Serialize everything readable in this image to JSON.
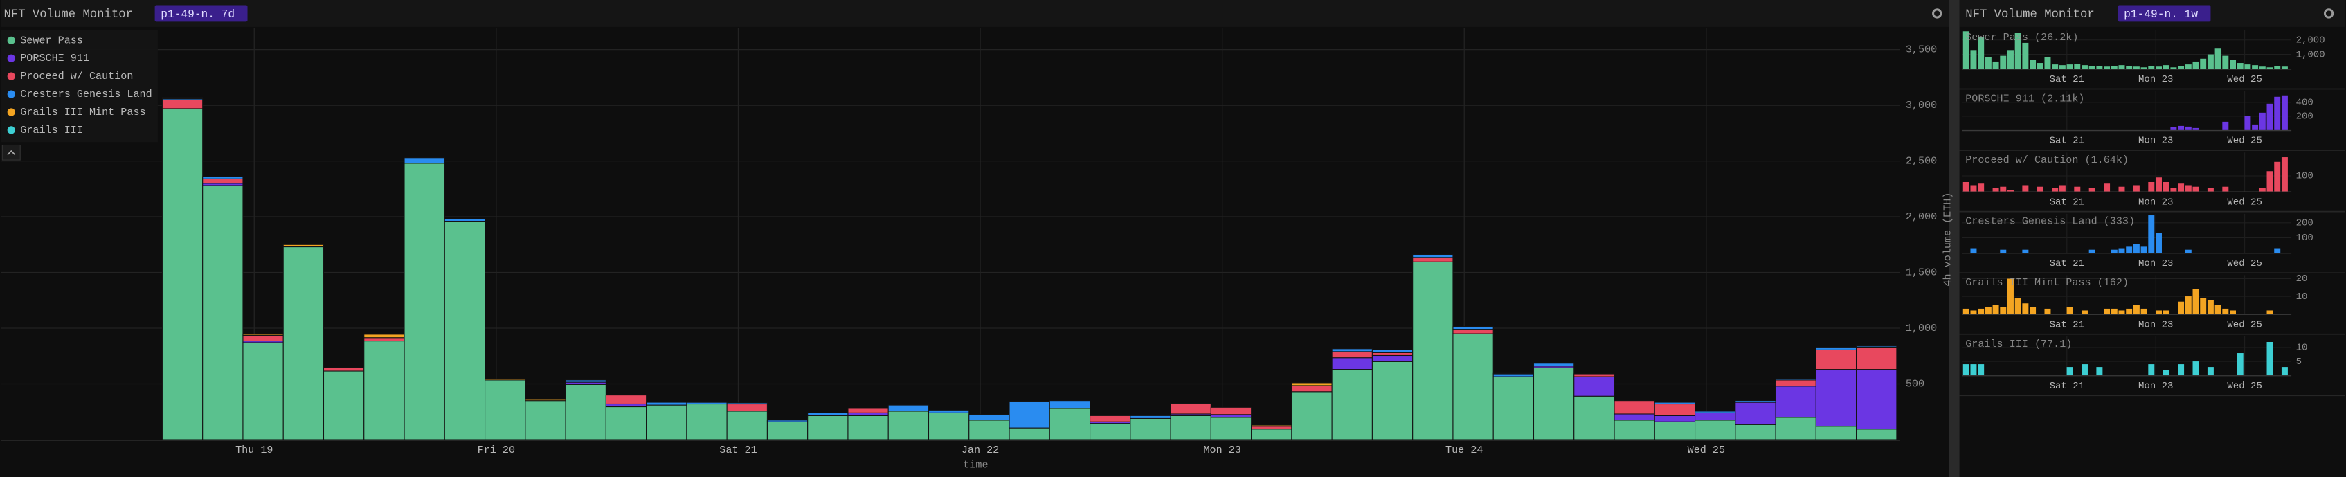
{
  "chart_data": [
    {
      "type": "stacked-bar",
      "title": "NFT Volume Monitor",
      "subtitle": "p1-49-n. 7d",
      "x_label": "time",
      "y_label": "4h volume (ETH)",
      "categories": [
        null,
        null,
        "Thu 19",
        null,
        null,
        null,
        null,
        null,
        "Fri 20",
        null,
        null,
        null,
        null,
        null,
        "Sat 21",
        null,
        null,
        null,
        null,
        null,
        "Jan 22",
        null,
        null,
        null,
        null,
        null,
        "Mon 23",
        null,
        null,
        null,
        null,
        null,
        "Tue 24",
        null,
        null,
        null,
        null,
        null,
        "Wed 25",
        null,
        null,
        null,
        null
      ],
      "ylim": [
        0,
        3690
      ],
      "yticks": [
        500,
        {
          "value": 1000,
          "label": "1,000"
        },
        {
          "value": 1500,
          "label": "1,500"
        },
        {
          "value": 2000,
          "label": "2,000"
        },
        {
          "value": 2500,
          "label": "2,500"
        },
        {
          "value": 3000,
          "label": "3,000"
        },
        {
          "value": 3500,
          "label": "3,500"
        }
      ],
      "grid": true,
      "legend": "upper left",
      "series": [
        {
          "name": "Sewer Pass",
          "color": "#5ac18e",
          "values": [
            2970,
            2280,
            870,
            1730,
            615,
            885,
            2480,
            1960,
            535,
            350,
            495,
            295,
            310,
            320,
            255,
            160,
            215,
            215,
            255,
            240,
            175,
            105,
            280,
            145,
            190,
            215,
            200,
            95,
            430,
            630,
            700,
            1595,
            950,
            565,
            645,
            390,
            175,
            160,
            175,
            135,
            200,
            120,
            95
          ]
        },
        {
          "name": "PORSCHΞ 911",
          "color": "#6b36e3",
          "values": [
            0,
            20,
            15,
            0,
            0,
            0,
            0,
            0,
            0,
            0,
            20,
            25,
            0,
            0,
            0,
            0,
            0,
            25,
            0,
            0,
            0,
            0,
            0,
            15,
            0,
            15,
            25,
            0,
            0,
            105,
            55,
            0,
            0,
            0,
            15,
            175,
            55,
            55,
            65,
            200,
            280,
            510,
            535
          ]
        },
        {
          "name": "Proceed w/ Caution",
          "color": "#e8485e",
          "values": [
            80,
            40,
            50,
            0,
            30,
            30,
            0,
            0,
            0,
            0,
            0,
            80,
            0,
            0,
            65,
            0,
            0,
            40,
            0,
            0,
            0,
            0,
            0,
            55,
            0,
            95,
            65,
            25,
            55,
            55,
            25,
            40,
            40,
            0,
            0,
            25,
            120,
            105,
            0,
            0,
            55,
            175,
            200
          ]
        },
        {
          "name": "Cresters Genesis Land",
          "color": "#2a8cf0",
          "values": [
            10,
            20,
            0,
            0,
            0,
            0,
            50,
            20,
            0,
            0,
            20,
            0,
            25,
            15,
            10,
            15,
            25,
            0,
            55,
            25,
            50,
            240,
            70,
            0,
            25,
            0,
            0,
            0,
            0,
            25,
            25,
            25,
            25,
            25,
            25,
            0,
            0,
            15,
            15,
            15,
            10,
            25,
            10
          ]
        },
        {
          "name": "Grails III Mint Pass",
          "color": "#f4a522",
          "values": [
            10,
            0,
            10,
            20,
            0,
            30,
            0,
            0,
            10,
            10,
            0,
            0,
            0,
            0,
            0,
            0,
            0,
            0,
            0,
            0,
            0,
            0,
            0,
            0,
            0,
            0,
            0,
            10,
            25,
            0,
            0,
            0,
            0,
            0,
            0,
            0,
            0,
            0,
            0,
            0,
            0,
            0,
            0
          ]
        },
        {
          "name": "Grails III",
          "color": "#3dcfd3",
          "values": [
            0,
            0,
            0,
            0,
            0,
            0,
            0,
            0,
            0,
            0,
            0,
            0,
            0,
            5,
            0,
            0,
            0,
            0,
            0,
            0,
            0,
            0,
            0,
            0,
            0,
            0,
            0,
            0,
            0,
            0,
            0,
            0,
            0,
            5,
            0,
            0,
            0,
            0,
            0,
            0,
            0,
            0,
            0
          ]
        }
      ]
    },
    {
      "type": "bar",
      "title": "Sewer Pass (26.2k)",
      "color": "#5ac18e",
      "categories": [
        null,
        null,
        null,
        null,
        null,
        null,
        null,
        null,
        null,
        null,
        null,
        null,
        null,
        null,
        "Sat 21",
        null,
        null,
        null,
        null,
        null,
        null,
        null,
        null,
        null,
        null,
        null,
        "Mon 23",
        null,
        null,
        null,
        null,
        null,
        null,
        null,
        null,
        null,
        null,
        null,
        "Wed 25",
        null,
        null,
        null,
        null,
        null
      ],
      "ylim": [
        0,
        2700
      ],
      "yticks": [
        {
          "value": 1000,
          "label": "1,000"
        },
        {
          "value": 2000,
          "label": "2,000"
        }
      ],
      "values": [
        2600,
        1300,
        2200,
        800,
        500,
        900,
        1300,
        2500,
        1800,
        600,
        400,
        800,
        300,
        250,
        300,
        350,
        250,
        200,
        200,
        150,
        200,
        250,
        200,
        150,
        100,
        200,
        150,
        250,
        100,
        200,
        300,
        500,
        700,
        1000,
        1400,
        900,
        600,
        400,
        300,
        250,
        150,
        100,
        200,
        150
      ]
    },
    {
      "type": "bar",
      "title": "PORSCHΞ 911 (2.11k)",
      "color": "#6b36e3",
      "categories": [
        null,
        null,
        null,
        null,
        null,
        null,
        null,
        null,
        null,
        null,
        null,
        null,
        null,
        null,
        "Sat 21",
        null,
        null,
        null,
        null,
        null,
        null,
        null,
        null,
        null,
        null,
        null,
        "Mon 23",
        null,
        null,
        null,
        null,
        null,
        null,
        null,
        null,
        null,
        null,
        null,
        "Wed 25",
        null,
        null,
        null,
        null,
        null
      ],
      "ylim": [
        0,
        560
      ],
      "yticks": [
        200,
        400
      ],
      "values": [
        0,
        0,
        0,
        0,
        0,
        0,
        0,
        0,
        0,
        0,
        0,
        0,
        0,
        0,
        0,
        0,
        0,
        0,
        0,
        0,
        0,
        0,
        0,
        0,
        0,
        0,
        0,
        0,
        40,
        60,
        50,
        30,
        0,
        0,
        0,
        120,
        0,
        0,
        200,
        80,
        250,
        380,
        480,
        500
      ]
    },
    {
      "type": "bar",
      "title": "Proceed w/ Caution (1.64k)",
      "color": "#e8485e",
      "categories": [
        null,
        null,
        null,
        null,
        null,
        null,
        null,
        null,
        null,
        null,
        null,
        null,
        null,
        null,
        "Sat 21",
        null,
        null,
        null,
        null,
        null,
        null,
        null,
        null,
        null,
        null,
        null,
        "Mon 23",
        null,
        null,
        null,
        null,
        null,
        null,
        null,
        null,
        null,
        null,
        null,
        "Wed 25",
        null,
        null,
        null,
        null,
        null
      ],
      "ylim": [
        0,
        250
      ],
      "yticks": [
        100
      ],
      "values": [
        60,
        40,
        50,
        0,
        20,
        30,
        10,
        0,
        40,
        0,
        30,
        0,
        20,
        40,
        0,
        30,
        0,
        20,
        0,
        50,
        0,
        30,
        0,
        40,
        0,
        60,
        90,
        60,
        20,
        50,
        40,
        30,
        0,
        20,
        0,
        30,
        0,
        0,
        0,
        0,
        20,
        130,
        190,
        220
      ]
    },
    {
      "type": "bar",
      "title": "Cresters Genesis Land (333)",
      "color": "#2a8cf0",
      "categories": [
        null,
        null,
        null,
        null,
        null,
        null,
        null,
        null,
        null,
        null,
        null,
        null,
        null,
        null,
        "Sat 21",
        null,
        null,
        null,
        null,
        null,
        null,
        null,
        null,
        null,
        null,
        null,
        "Mon 23",
        null,
        null,
        null,
        null,
        null,
        null,
        null,
        null,
        null,
        null,
        null,
        "Wed 25",
        null,
        null,
        null,
        null,
        null
      ],
      "ylim": [
        0,
        260
      ],
      "yticks": [
        100,
        200
      ],
      "values": [
        0,
        30,
        0,
        0,
        0,
        20,
        0,
        0,
        20,
        0,
        0,
        0,
        0,
        0,
        0,
        0,
        0,
        20,
        0,
        0,
        20,
        30,
        40,
        60,
        40,
        250,
        130,
        0,
        0,
        0,
        20,
        0,
        0,
        0,
        0,
        0,
        0,
        0,
        0,
        0,
        0,
        0,
        30,
        0
      ]
    },
    {
      "type": "bar",
      "title": "Grails III Mint Pass (162)",
      "color": "#f4a522",
      "categories": [
        null,
        null,
        null,
        null,
        null,
        null,
        null,
        null,
        null,
        null,
        null,
        null,
        null,
        null,
        "Sat 21",
        null,
        null,
        null,
        null,
        null,
        null,
        null,
        null,
        null,
        null,
        null,
        "Mon 23",
        null,
        null,
        null,
        null,
        null,
        null,
        null,
        null,
        null,
        null,
        null,
        "Wed 25",
        null,
        null,
        null,
        null,
        null
      ],
      "ylim": [
        0,
        22
      ],
      "yticks": [
        10,
        20
      ],
      "values": [
        3,
        2,
        3,
        4,
        5,
        4,
        20,
        9,
        6,
        4,
        0,
        3,
        0,
        0,
        4,
        0,
        2,
        0,
        0,
        3,
        3,
        2,
        3,
        5,
        3,
        0,
        2,
        2,
        0,
        7,
        10,
        14,
        9,
        8,
        5,
        3,
        2,
        0,
        0,
        0,
        0,
        2,
        0,
        0
      ]
    },
    {
      "type": "bar",
      "title": "Grails III (77.1)",
      "color": "#3dcfd3",
      "categories": [
        null,
        null,
        null,
        null,
        null,
        null,
        null,
        null,
        null,
        null,
        null,
        null,
        null,
        null,
        "Sat 21",
        null,
        null,
        null,
        null,
        null,
        null,
        null,
        null,
        null,
        null,
        null,
        "Mon 23",
        null,
        null,
        null,
        null,
        null,
        null,
        null,
        null,
        null,
        null,
        null,
        "Wed 25",
        null,
        null,
        null,
        null,
        null
      ],
      "ylim": [
        0,
        14
      ],
      "yticks": [
        5,
        10
      ],
      "values": [
        4,
        4,
        4,
        0,
        0,
        0,
        0,
        0,
        0,
        0,
        0,
        0,
        0,
        0,
        3,
        0,
        4,
        0,
        3,
        0,
        0,
        0,
        0,
        0,
        0,
        4,
        0,
        2,
        0,
        4,
        0,
        5,
        0,
        3,
        0,
        0,
        0,
        8,
        0,
        0,
        0,
        12,
        0,
        3
      ]
    }
  ],
  "right_header": {
    "title": "NFT Volume Monitor",
    "badge": "p1-49-n. 1w"
  }
}
